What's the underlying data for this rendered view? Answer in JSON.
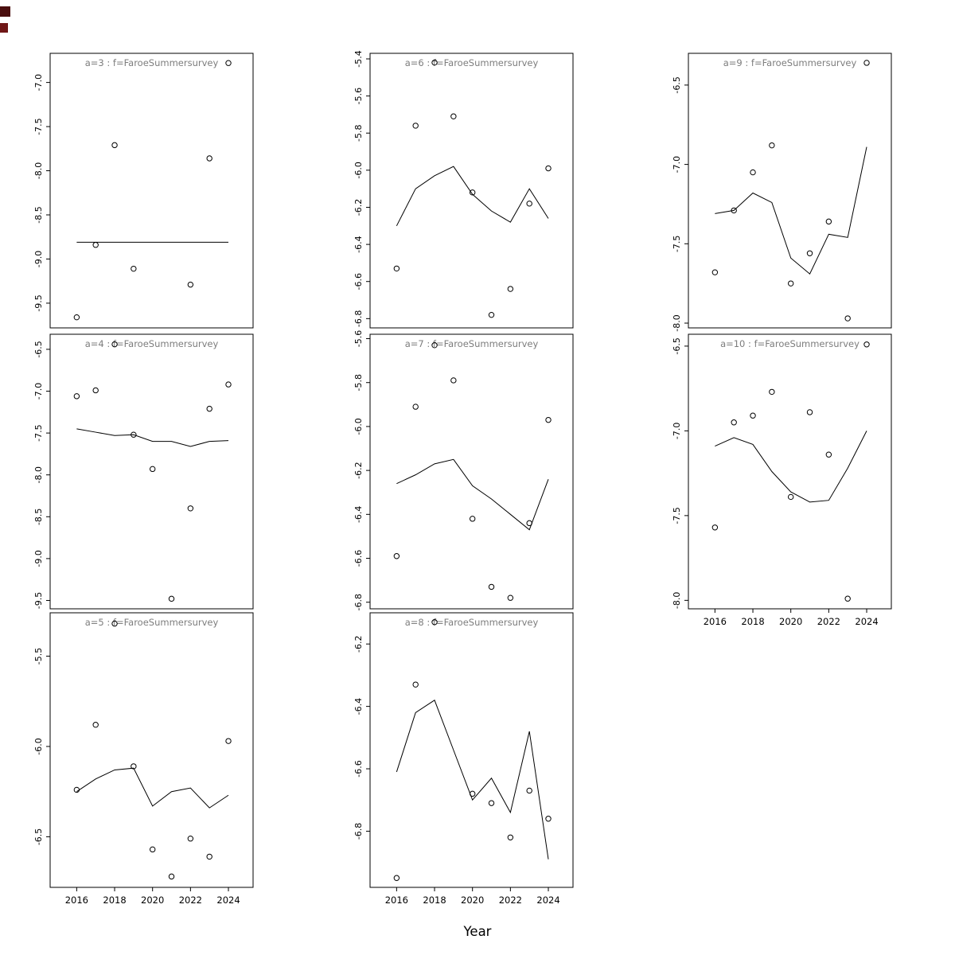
{
  "figure": {
    "artifacts": [
      {
        "name": "artifact-square-top",
        "color": "#4a0e0e"
      },
      {
        "name": "artifact-square-bottom",
        "color": "#701717"
      }
    ]
  },
  "chart_data": {
    "type": "scatter",
    "layout": "3x3 lattice of panels, bottom-right cell empty; open-circle observations with thin fitted line per panel",
    "xlabel": "Year",
    "x_ticks": [
      2016,
      2018,
      2020,
      2022,
      2024
    ],
    "xlim": [
      2014.6,
      2025.3
    ],
    "title_color": "#7d7d7d",
    "panels": [
      {
        "id": "a3",
        "title": "a=3  :  f=FaroeSummersurvey",
        "col": 0,
        "row": 0,
        "show_x_axis": false,
        "ylim": [
          -9.78,
          -6.67
        ],
        "yticks": [
          -7.0,
          -7.5,
          -8.0,
          -8.5,
          -9.0,
          -9.5
        ],
        "points": {
          "x": [
            2016,
            2017,
            2018,
            2019,
            2022,
            2023,
            2024
          ],
          "y": [
            -9.66,
            -8.84,
            -7.71,
            -9.11,
            -9.29,
            -7.86,
            -6.78
          ]
        },
        "line": {
          "x": [
            2016,
            2024
          ],
          "y": [
            -8.81,
            -8.81
          ]
        }
      },
      {
        "id": "a4",
        "title": "a=4  :  f=FaroeSummersurvey",
        "col": 0,
        "row": 1,
        "show_x_axis": false,
        "ylim": [
          -9.6,
          -6.32
        ],
        "yticks": [
          -6.5,
          -7.0,
          -7.5,
          -8.0,
          -8.5,
          -9.0,
          -9.5
        ],
        "points": {
          "x": [
            2016,
            2017,
            2018,
            2019,
            2020,
            2021,
            2022,
            2023,
            2024
          ],
          "y": [
            -7.06,
            -6.99,
            -6.44,
            -7.52,
            -7.93,
            -9.48,
            -8.4,
            -7.21,
            -6.92
          ]
        },
        "line": {
          "x": [
            2016,
            2017,
            2018,
            2019,
            2020,
            2021,
            2022,
            2023,
            2024
          ],
          "y": [
            -7.45,
            -7.49,
            -7.53,
            -7.52,
            -7.6,
            -7.6,
            -7.66,
            -7.6,
            -7.59
          ]
        }
      },
      {
        "id": "a5",
        "title": "a=5  :  f=FaroeSummersurvey",
        "col": 0,
        "row": 2,
        "show_x_axis": true,
        "ylim": [
          -6.78,
          -5.26
        ],
        "yticks": [
          -5.5,
          -6.0,
          -6.5
        ],
        "points": {
          "x": [
            2016,
            2017,
            2018,
            2019,
            2020,
            2021,
            2022,
            2023,
            2024
          ],
          "y": [
            -6.24,
            -5.88,
            -5.32,
            -6.11,
            -6.57,
            -6.72,
            -6.51,
            -6.61,
            -5.97
          ]
        },
        "line": {
          "x": [
            2016,
            2017,
            2018,
            2019,
            2020,
            2021,
            2022,
            2023,
            2024
          ],
          "y": [
            -6.25,
            -6.18,
            -6.13,
            -6.12,
            -6.33,
            -6.25,
            -6.23,
            -6.34,
            -6.27
          ]
        }
      },
      {
        "id": "a6",
        "title": "a=6  :  f=FaroeSummersurvey",
        "col": 1,
        "row": 0,
        "show_x_axis": false,
        "ylim": [
          -6.85,
          -5.37
        ],
        "yticks": [
          -5.4,
          -5.6,
          -5.8,
          -6.0,
          -6.2,
          -6.4,
          -6.6,
          -6.8
        ],
        "points": {
          "x": [
            2016,
            2017,
            2018,
            2019,
            2020,
            2021,
            2022,
            2023,
            2024
          ],
          "y": [
            -6.53,
            -5.76,
            -5.42,
            -5.71,
            -6.12,
            -6.78,
            -6.64,
            -6.18,
            -5.99
          ]
        },
        "line": {
          "x": [
            2016,
            2017,
            2018,
            2019,
            2020,
            2021,
            2022,
            2023,
            2024
          ],
          "y": [
            -6.3,
            -6.1,
            -6.03,
            -5.98,
            -6.13,
            -6.22,
            -6.28,
            -6.1,
            -6.26
          ]
        }
      },
      {
        "id": "a7",
        "title": "a=7  :  f=FaroeSummersurvey",
        "col": 1,
        "row": 1,
        "show_x_axis": false,
        "ylim": [
          -6.83,
          -5.58
        ],
        "yticks": [
          -5.6,
          -5.8,
          -6.0,
          -6.2,
          -6.4,
          -6.6,
          -6.8
        ],
        "points": {
          "x": [
            2016,
            2017,
            2018,
            2019,
            2020,
            2021,
            2022,
            2023,
            2024
          ],
          "y": [
            -6.59,
            -5.91,
            -5.63,
            -5.79,
            -6.42,
            -6.73,
            -6.78,
            -6.44,
            -5.97
          ]
        },
        "line": {
          "x": [
            2016,
            2017,
            2018,
            2019,
            2020,
            2021,
            2022,
            2023,
            2024
          ],
          "y": [
            -6.26,
            -6.22,
            -6.17,
            -6.15,
            -6.27,
            -6.33,
            -6.4,
            -6.47,
            -6.24
          ]
        }
      },
      {
        "id": "a8",
        "title": "a=8  :  f=FaroeSummersurvey",
        "col": 1,
        "row": 2,
        "show_x_axis": true,
        "ylim": [
          -6.98,
          -6.1
        ],
        "yticks": [
          -6.2,
          -6.4,
          -6.6,
          -6.8
        ],
        "points": {
          "x": [
            2016,
            2017,
            2018,
            2020,
            2021,
            2022,
            2023,
            2024
          ],
          "y": [
            -6.95,
            -6.33,
            -6.13,
            -6.68,
            -6.71,
            -6.82,
            -6.67,
            -6.76
          ]
        },
        "line": {
          "x": [
            2016,
            2017,
            2018,
            2019,
            2020,
            2021,
            2022,
            2023,
            2024
          ],
          "y": [
            -6.61,
            -6.42,
            -6.38,
            -6.54,
            -6.7,
            -6.63,
            -6.74,
            -6.48,
            -6.89
          ]
        }
      },
      {
        "id": "a9",
        "title": "a=9  :  f=FaroeSummersurvey",
        "col": 2,
        "row": 0,
        "show_x_axis": false,
        "ylim": [
          -8.03,
          -6.3
        ],
        "yticks": [
          -6.5,
          -7.0,
          -7.5,
          -8.0
        ],
        "points": {
          "x": [
            2016,
            2017,
            2018,
            2019,
            2020,
            2021,
            2022,
            2023,
            2024
          ],
          "y": [
            -7.68,
            -7.29,
            -7.05,
            -6.88,
            -7.75,
            -7.56,
            -7.36,
            -7.97,
            -6.36
          ]
        },
        "line": {
          "x": [
            2016,
            2017,
            2018,
            2019,
            2020,
            2021,
            2022,
            2023,
            2024
          ],
          "y": [
            -7.31,
            -7.29,
            -7.18,
            -7.24,
            -7.59,
            -7.69,
            -7.44,
            -7.46,
            -6.89
          ]
        }
      },
      {
        "id": "a10",
        "title": "a=10  :  f=FaroeSummersurvey",
        "col": 2,
        "row": 1,
        "show_x_axis": true,
        "ylim": [
          -8.05,
          -6.43
        ],
        "yticks": [
          -6.5,
          -7.0,
          -7.5,
          -8.0
        ],
        "points": {
          "x": [
            2016,
            2017,
            2018,
            2019,
            2020,
            2021,
            2022,
            2023,
            2024
          ],
          "y": [
            -7.57,
            -6.95,
            -6.91,
            -6.77,
            -7.39,
            -6.89,
            -7.14,
            -7.99,
            -6.49
          ]
        },
        "line": {
          "x": [
            2016,
            2017,
            2018,
            2019,
            2020,
            2021,
            2022,
            2023,
            2024
          ],
          "y": [
            -7.09,
            -7.04,
            -7.08,
            -7.24,
            -7.36,
            -7.42,
            -7.41,
            -7.22,
            -7.0
          ]
        }
      }
    ]
  }
}
